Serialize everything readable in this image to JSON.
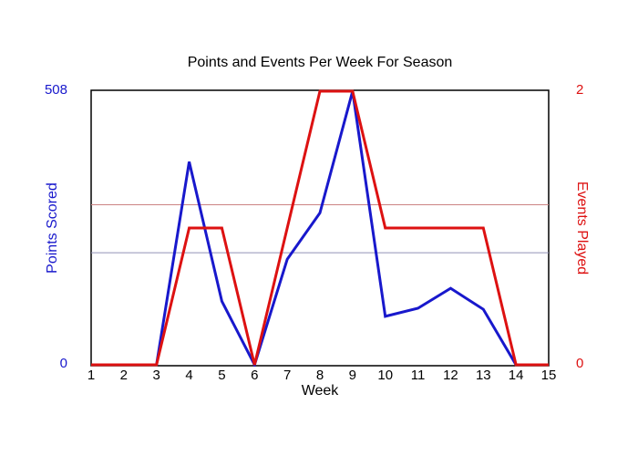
{
  "chart_data": {
    "type": "line",
    "title": "Points and Events Per Week For Season",
    "xlabel": "Week",
    "x": [
      1,
      2,
      3,
      4,
      5,
      6,
      7,
      8,
      9,
      10,
      11,
      12,
      13,
      14,
      15
    ],
    "series": [
      {
        "name": "Points Scored",
        "axis": "left",
        "color": "#1818cc",
        "values": [
          0,
          0,
          0,
          377,
          118,
          0,
          196,
          282,
          508,
          90,
          105,
          142,
          103,
          0,
          0
        ]
      },
      {
        "name": "Events Played",
        "axis": "right",
        "color": "#dd1111",
        "values": [
          0,
          0,
          0,
          1,
          1,
          0,
          1,
          2,
          2,
          1,
          1,
          1,
          1,
          0,
          0
        ]
      }
    ],
    "left_axis": {
      "label": "Points Scored",
      "min": 0,
      "max": 508,
      "min_label": "0",
      "max_label": "508",
      "color": "#1818cc"
    },
    "right_axis": {
      "label": "Events Played",
      "min": 0,
      "max": 2,
      "min_label": "0",
      "max_label": "2",
      "color": "#dd1111"
    },
    "reference_lines": [
      {
        "axis": "left",
        "value": 208,
        "color": "#9090b8"
      },
      {
        "axis": "right",
        "value": 1.17,
        "color": "#cc8484"
      }
    ],
    "grid": false,
    "legend": false,
    "plot_border_color": "#000000",
    "background": "#ffffff",
    "title_color": "#000000",
    "xaxis_text_color": "#000000"
  }
}
